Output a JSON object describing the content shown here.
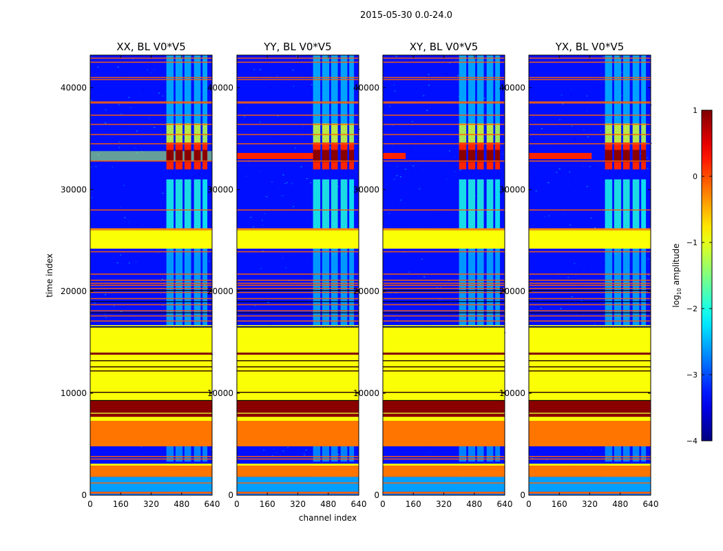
{
  "chart_data": {
    "type": "heatmap",
    "suptitle": "2015-05-30 0.0-24.0",
    "xlabel": "channel index",
    "ylabel": "time index",
    "xlim": [
      0,
      640
    ],
    "ylim": [
      0,
      43200
    ],
    "xticks": [
      0,
      160,
      320,
      480,
      640
    ],
    "yticks": [
      0,
      10000,
      20000,
      30000,
      40000
    ],
    "colorbar": {
      "label": "log10 amplitude",
      "label_base": "log",
      "label_sub": "10",
      "label_rest": " amplitude",
      "range": [
        -4,
        1
      ],
      "ticks": [
        {
          "value": 1,
          "text": "1"
        },
        {
          "value": 0,
          "text": "0"
        },
        {
          "value": -1,
          "text": "−1"
        },
        {
          "value": -2,
          "text": "−2"
        },
        {
          "value": -3,
          "text": "−3"
        },
        {
          "value": -4,
          "text": "−4"
        }
      ]
    },
    "panels": [
      {
        "title": "XX, BL V0*V5",
        "rfi_row_start": 0,
        "leak_to_ch": 0
      },
      {
        "title": "YY, BL V0*V5",
        "rfi_row_start": 0,
        "leak_to_ch": 420
      },
      {
        "title": "XY, BL V0*V5",
        "rfi_row_start": 0,
        "leak_to_ch": 120
      },
      {
        "title": "YX, BL V0*V5",
        "rfi_row_start": 0,
        "leak_to_ch": 330
      }
    ],
    "background_level": -3.3,
    "time_bands": [
      {
        "t0": 0,
        "t1": 200,
        "value": -2.8
      },
      {
        "t0": 200,
        "t1": 350,
        "value": -0.1
      },
      {
        "t0": 350,
        "t1": 1800,
        "value": -2.6
      },
      {
        "t0": 2900,
        "t1": 3100,
        "value": -0.9
      },
      {
        "t0": 1800,
        "t1": 2900,
        "value": -0.2
      },
      {
        "t0": 3100,
        "t1": 3300,
        "value": -3.3
      },
      {
        "t0": 4800,
        "t1": 7300,
        "value": -0.2
      },
      {
        "t0": 7300,
        "t1": 7700,
        "value": -0.9
      },
      {
        "t0": 7700,
        "t1": 8000,
        "value": 0.95
      },
      {
        "t0": 8000,
        "t1": 8100,
        "value": -0.9
      },
      {
        "t0": 8100,
        "t1": 9300,
        "value": 0.95
      },
      {
        "t0": 9300,
        "t1": 13800,
        "value": -0.9
      },
      {
        "t0": 13800,
        "t1": 14000,
        "value": 0.95
      },
      {
        "t0": 14000,
        "t1": 16500,
        "value": -0.9
      },
      {
        "t0": 16600,
        "t1": 16700,
        "value": -0.9
      },
      {
        "t0": 24200,
        "t1": 26000,
        "value": -0.9
      },
      {
        "t0": 26000,
        "t1": 26200,
        "value": -0.3
      }
    ],
    "rfi_lines": [
      200,
      1200,
      3550,
      3800,
      10100,
      12200,
      12600,
      13200,
      17100,
      17600,
      18100,
      18700,
      19300,
      19900,
      20300,
      20600,
      20800,
      21100,
      21700,
      23900,
      28000,
      32800,
      34500,
      35400,
      36400,
      37300,
      38500,
      38600,
      40800,
      41000,
      42500,
      42900
    ],
    "black_lines": [
      9300,
      10100,
      12200,
      12600,
      13200,
      16500,
      17900,
      19000,
      20100
    ],
    "channel_columns": [
      {
        "c0": 400,
        "c1": 438,
        "strength": 1.0
      },
      {
        "c0": 448,
        "c1": 485,
        "strength": 1.2
      },
      {
        "c0": 495,
        "c1": 530,
        "strength": 1.2
      },
      {
        "c0": 545,
        "c1": 580,
        "strength": 1.1
      },
      {
        "c0": 590,
        "c1": 615,
        "strength": 0.8
      }
    ],
    "flare": {
      "t_center": 33300,
      "t_width": 600,
      "peak": 0.95
    }
  }
}
